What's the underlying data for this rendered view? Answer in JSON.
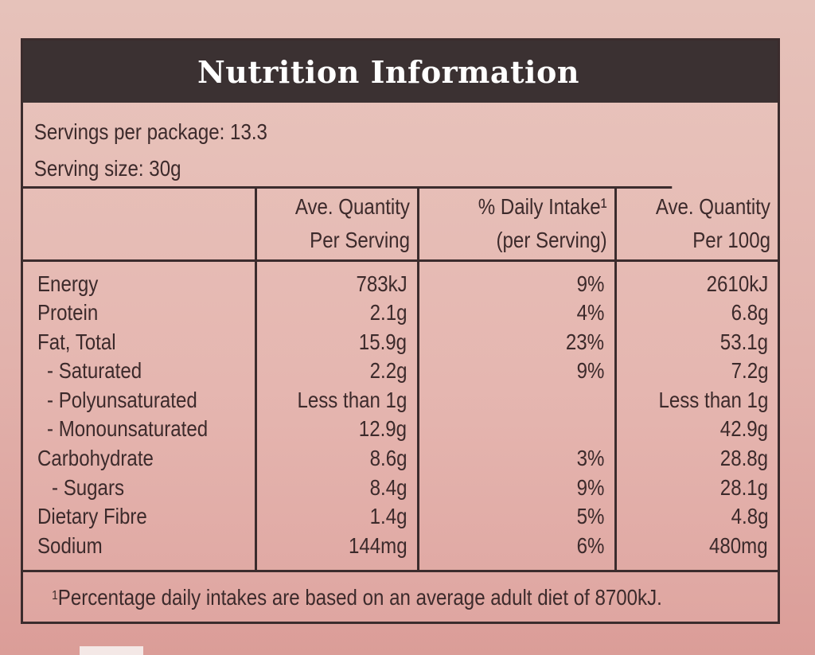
{
  "panel": {
    "title": "Nutrition Information",
    "servings_per_package": "Servings per package: 13.3",
    "serving_size": "Serving size: 30g"
  },
  "columns": {
    "per_serving": [
      "Ave. Quantity",
      "Per Serving"
    ],
    "daily_intake": [
      "% Daily Intake¹",
      "(per Serving)"
    ],
    "per_100g": [
      "Ave. Quantity",
      "Per 100g"
    ]
  },
  "rows": [
    {
      "name": "Energy",
      "per_serving": "783kJ",
      "daily_intake": "9%",
      "per_100g": "2610kJ"
    },
    {
      "name": "Protein",
      "per_serving": "2.1g",
      "daily_intake": "4%",
      "per_100g": "6.8g"
    },
    {
      "name": "Fat, Total",
      "per_serving": "15.9g",
      "daily_intake": "23%",
      "per_100g": "53.1g"
    },
    {
      "name": "- Saturated",
      "per_serving": "2.2g",
      "daily_intake": "9%",
      "per_100g": "7.2g"
    },
    {
      "name": "- Polyunsaturated",
      "per_serving": "Less than 1g",
      "daily_intake": "",
      "per_100g": "Less than 1g"
    },
    {
      "name": "- Monounsaturated",
      "per_serving": "12.9g",
      "daily_intake": "",
      "per_100g": "42.9g"
    },
    {
      "name": "Carbohydrate",
      "per_serving": "8.6g",
      "daily_intake": "3%",
      "per_100g": "28.8g"
    },
    {
      "name": "- Sugars",
      "per_serving": "8.4g",
      "daily_intake": "9%",
      "per_100g": "28.1g"
    },
    {
      "name": "Dietary Fibre",
      "per_serving": "1.4g",
      "daily_intake": "5%",
      "per_100g": "4.8g"
    },
    {
      "name": "Sodium",
      "per_serving": "144mg",
      "daily_intake": "6%",
      "per_100g": "480mg"
    }
  ],
  "footnote": {
    "marker": "1",
    "text": "Percentage daily intakes are based on an average adult diet of 8700kJ."
  }
}
